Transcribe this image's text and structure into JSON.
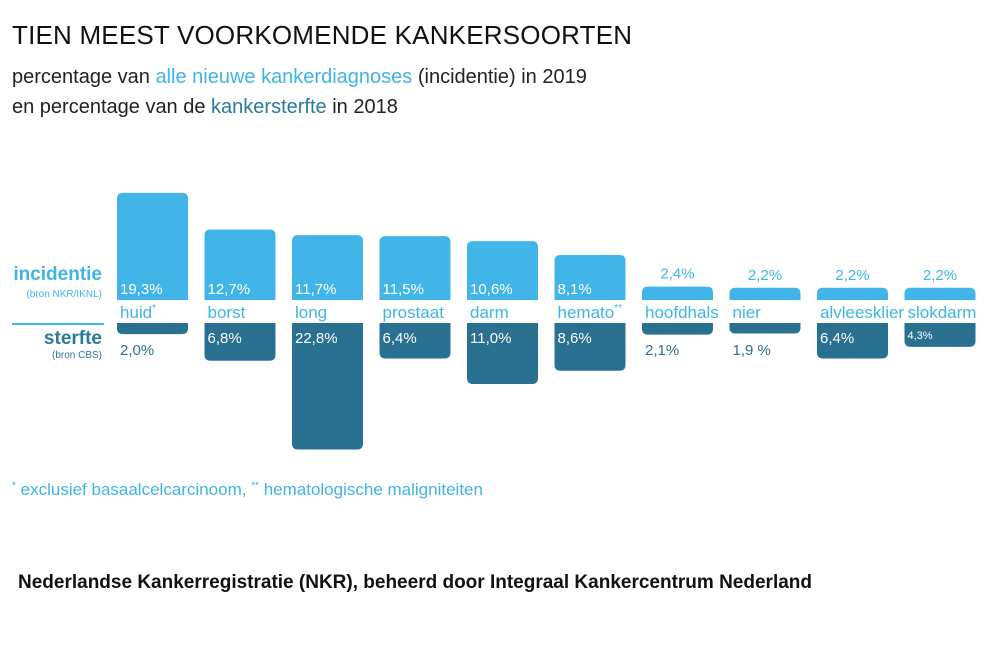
{
  "title": "TIEN MEEST VOORKOMENDE KANKERSOORTEN",
  "subtitle": {
    "line1_pre": "percentage van ",
    "line1_hl": "alle nieuwe kankerdiagnoses",
    "line1_post": " (incidentie) in 2019",
    "line2_pre": "en percentage van de ",
    "line2_hl": "kankersterfte",
    "line2_post": " in 2018"
  },
  "row_labels": {
    "incidence": "incidentie",
    "incidence_source": "(bron NKR/IKNL)",
    "mortality": "sterfte",
    "mortality_source": "(bron CBS)"
  },
  "colors": {
    "incidence": "#41b5e7",
    "mortality": "#2a7090",
    "text_dark": "#111111"
  },
  "chart_data": {
    "type": "bar",
    "categories": [
      "huid",
      "borst",
      "long",
      "prostaat",
      "darm",
      "hemato",
      "hoofdhals",
      "nier",
      "alvleesklier",
      "slokdarm"
    ],
    "category_superscripts": [
      "*",
      "",
      "",
      "",
      "",
      "**",
      "",
      "",
      "",
      ""
    ],
    "series": [
      {
        "name": "incidentie",
        "values": [
          19.3,
          12.7,
          11.7,
          11.5,
          10.6,
          8.1,
          2.4,
          2.2,
          2.2,
          2.2
        ],
        "labels": [
          "19,3%",
          "12,7%",
          "11,7%",
          "11,5%",
          "10,6%",
          "8,1%",
          "2,4%",
          "2,2%",
          "2,2%",
          "2,2%"
        ]
      },
      {
        "name": "sterfte",
        "values": [
          2.0,
          6.8,
          22.8,
          6.4,
          11.0,
          8.6,
          2.1,
          1.9,
          6.4,
          4.3
        ],
        "labels": [
          "2,0%",
          "6,8%",
          "22,8%",
          "6,4%",
          "11,0%",
          "8,6%",
          "2,1%",
          "1,9 %",
          "6,4%",
          "4,3%"
        ]
      }
    ]
  },
  "footnote": {
    "mark1": "*",
    "text1": " exclusief basaalcelcarcinoom, ",
    "mark2": "**",
    "text2": " hematologische maligniteiten"
  },
  "source": "Nederlandse Kankerregistratie (NKR), beheerd door Integraal Kankercentrum Nederland"
}
